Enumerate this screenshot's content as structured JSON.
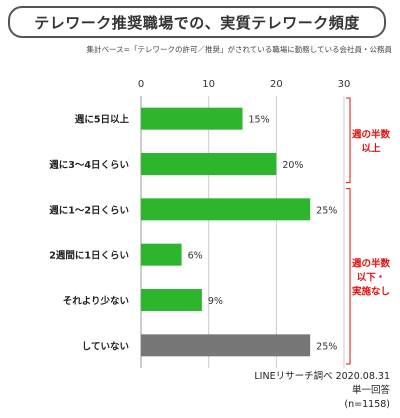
{
  "title": "テレワーク推奨職場での、実質テレワーク頻度",
  "base_note": "集計ベース=「テレワークの許可／推奨」がされている職場に勤務している会社員・公務員",
  "source": [
    "LINEリサーチ調べ 2020.08.31",
    "単一回答",
    "(n=1158)"
  ],
  "colors": {
    "green": "#2db52d",
    "gray": "#777777",
    "red": "#e01010",
    "grid": "#cccccc"
  },
  "chart_data": {
    "type": "bar",
    "orientation": "horizontal",
    "title": "テレワーク推奨職場での、実質テレワーク頻度",
    "xlim": [
      0,
      30
    ],
    "xticks": [
      0,
      10,
      20,
      30
    ],
    "grid": true,
    "categories": [
      "週に5日以上",
      "週に3～4日くらい",
      "週に1～2日くらい",
      "2週間に1日くらい",
      "それより少ない",
      "していない"
    ],
    "values": [
      15,
      20,
      25,
      6,
      9,
      25
    ],
    "value_labels": [
      "15%",
      "20%",
      "25%",
      "6%",
      "9%",
      "25%"
    ],
    "bar_colors": [
      "green",
      "green",
      "green",
      "green",
      "green",
      "gray"
    ],
    "annotations": [
      {
        "text_lines": [
          "週の半数",
          "以上"
        ],
        "from": 0,
        "to": 1,
        "color": "red"
      },
      {
        "text_lines": [
          "週の半数",
          "以下・",
          "実施なし"
        ],
        "from": 2,
        "to": 5,
        "color": "red"
      }
    ]
  }
}
